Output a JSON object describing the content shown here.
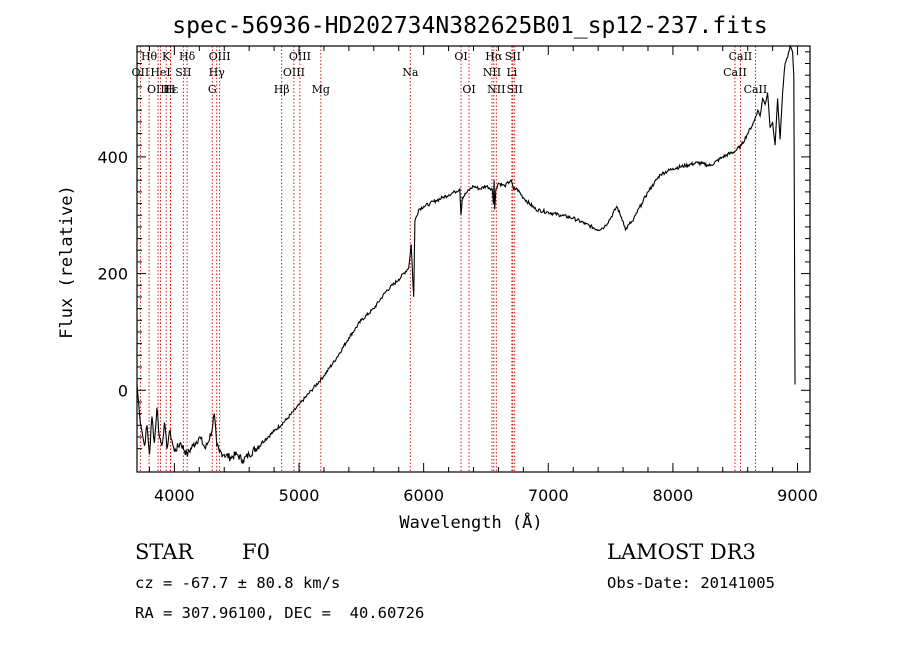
{
  "chart_data": {
    "type": "line",
    "title": "spec-56936-HD202734N382625B01_sp12-237.fits",
    "xlabel": "Wavelength (Å)",
    "ylabel": "Flux (relative)",
    "xlim": [
      3700,
      9100
    ],
    "ylim": [
      -140,
      590
    ],
    "xticks": [
      4000,
      5000,
      6000,
      7000,
      8000,
      9000
    ],
    "xtick_labels": [
      "4000",
      "5000",
      "6000",
      "7000",
      "8000",
      "9000"
    ],
    "yticks": [
      0,
      200,
      400
    ],
    "ytick_labels": [
      "0",
      "200",
      "400"
    ],
    "series": [
      {
        "name": "flux",
        "color": "#000000",
        "x": [
          3700,
          3720,
          3740,
          3760,
          3780,
          3800,
          3820,
          3840,
          3860,
          3880,
          3900,
          3920,
          3940,
          3960,
          3980,
          4000,
          4050,
          4100,
          4150,
          4200,
          4250,
          4300,
          4320,
          4340,
          4360,
          4400,
          4450,
          4500,
          4550,
          4600,
          4700,
          4800,
          4900,
          5000,
          5100,
          5200,
          5300,
          5400,
          5500,
          5600,
          5700,
          5800,
          5880,
          5900,
          5920,
          5930,
          5960,
          6000,
          6050,
          6100,
          6150,
          6200,
          6250,
          6290,
          6300,
          6310,
          6350,
          6400,
          6450,
          6500,
          6550,
          6560,
          6565,
          6570,
          6580,
          6600,
          6650,
          6700,
          6720,
          6750,
          6800,
          6900,
          7000,
          7100,
          7200,
          7300,
          7400,
          7450,
          7500,
          7550,
          7600,
          7620,
          7650,
          7680,
          7700,
          7750,
          7800,
          7900,
          8000,
          8100,
          8200,
          8300,
          8400,
          8500,
          8550,
          8600,
          8650,
          8680,
          8700,
          8720,
          8740,
          8760,
          8780,
          8800,
          8820,
          8840,
          8860,
          8880,
          8900,
          8920,
          8940,
          8960,
          8970,
          8975,
          8980
        ],
        "values": [
          10,
          -40,
          -70,
          -95,
          -60,
          -110,
          -45,
          -90,
          -30,
          -80,
          -95,
          -55,
          -100,
          -70,
          -85,
          -105,
          -90,
          -110,
          -95,
          -80,
          -100,
          -70,
          -40,
          -95,
          -105,
          -110,
          -115,
          -110,
          -120,
          -110,
          -90,
          -70,
          -50,
          -25,
          0,
          25,
          55,
          90,
          120,
          140,
          170,
          190,
          210,
          250,
          160,
          290,
          310,
          315,
          320,
          325,
          330,
          335,
          340,
          345,
          300,
          330,
          340,
          350,
          345,
          350,
          345,
          320,
          360,
          310,
          345,
          355,
          350,
          360,
          345,
          345,
          330,
          310,
          305,
          300,
          295,
          285,
          275,
          280,
          295,
          315,
          290,
          275,
          285,
          290,
          300,
          320,
          340,
          370,
          380,
          385,
          390,
          385,
          400,
          410,
          420,
          440,
          460,
          480,
          470,
          500,
          490,
          510,
          450,
          460,
          420,
          500,
          430,
          510,
          560,
          570,
          590,
          580,
          540,
          300,
          10
        ]
      }
    ],
    "lines": [
      {
        "label": "Hθ",
        "x": 3797,
        "row": 0
      },
      {
        "label": "K",
        "x": 3934,
        "row": 0
      },
      {
        "label": "Hδ",
        "x": 4102,
        "row": 0
      },
      {
        "label": "OIII",
        "x": 4363,
        "row": 0
      },
      {
        "label": "OIII",
        "x": 5007,
        "row": 0
      },
      {
        "label": "OI",
        "x": 6300,
        "row": 0
      },
      {
        "label": "Hα",
        "x": 6563,
        "row": 0
      },
      {
        "label": "SII",
        "x": 6716,
        "row": 0
      },
      {
        "label": "CaII",
        "x": 8542,
        "row": 0
      },
      {
        "label": "OII",
        "x": 3727,
        "row": 1
      },
      {
        "label": "HeI",
        "x": 3889,
        "row": 1
      },
      {
        "label": "SII",
        "x": 4072,
        "row": 1
      },
      {
        "label": "Hγ",
        "x": 4340,
        "row": 1
      },
      {
        "label": "OIII",
        "x": 4959,
        "row": 1
      },
      {
        "label": "Na",
        "x": 5893,
        "row": 1
      },
      {
        "label": "NII",
        "x": 6548,
        "row": 1
      },
      {
        "label": "Li",
        "x": 6708,
        "row": 1
      },
      {
        "label": "CaII",
        "x": 8498,
        "row": 1
      },
      {
        "label": "OIII",
        "x": 3869,
        "row": 2
      },
      {
        "label": "Hε",
        "x": 3970,
        "row": 2
      },
      {
        "label": "H",
        "x": 3968,
        "row": 2
      },
      {
        "label": "G",
        "x": 4304,
        "row": 2
      },
      {
        "label": "Hβ",
        "x": 4861,
        "row": 2
      },
      {
        "label": "Mg",
        "x": 5175,
        "row": 2
      },
      {
        "label": "OI",
        "x": 6364,
        "row": 2
      },
      {
        "label": "NII",
        "x": 6583,
        "row": 2
      },
      {
        "label": "SII",
        "x": 6731,
        "row": 2
      },
      {
        "label": "CaII",
        "x": 8662,
        "row": 2
      }
    ],
    "line_color": "#cc0000"
  },
  "info": {
    "object_class": "STAR",
    "subclass": "F0",
    "survey": "LAMOST DR3",
    "redshift": "cz = -67.7 ± 80.8 km/s",
    "obs_date": "Obs-Date: 20141005",
    "coords": "RA = 307.96100, DEC =  40.60726"
  }
}
